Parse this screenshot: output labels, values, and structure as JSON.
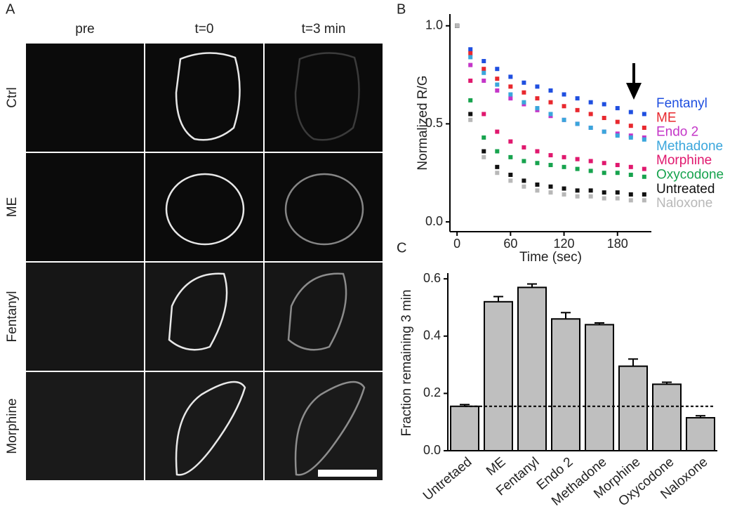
{
  "panel_a": {
    "panel_label": "A",
    "columns": [
      "pre",
      "t=0",
      "t=3 min"
    ],
    "rows": [
      "Ctrl",
      "ME",
      "Fentanyl",
      "Morphine"
    ]
  },
  "chart_data": [
    {
      "type": "line",
      "panel_label": "B",
      "x_label": "Time (sec)",
      "y_label": "Normalized R/G",
      "x": [
        0,
        15,
        30,
        45,
        60,
        75,
        90,
        105,
        120,
        135,
        150,
        165,
        180,
        195,
        210
      ],
      "xlim": [
        -8,
        218
      ],
      "xticks": [
        0,
        60,
        120,
        180
      ],
      "ylim": [
        -0.05,
        1.06
      ],
      "yticks": [
        {
          "value": 0,
          "label": "0.0"
        },
        0.5,
        {
          "value": 1,
          "label": "1.0"
        }
      ],
      "series": [
        {
          "name": "Fentanyl",
          "color": "#1f4fe0",
          "values": [
            1.0,
            0.88,
            0.82,
            0.78,
            0.74,
            0.71,
            0.69,
            0.67,
            0.65,
            0.63,
            0.61,
            0.6,
            0.58,
            0.56,
            0.55
          ]
        },
        {
          "name": "ME",
          "color": "#e8282e",
          "values": [
            1.0,
            0.86,
            0.78,
            0.73,
            0.69,
            0.66,
            0.63,
            0.61,
            0.59,
            0.57,
            0.55,
            0.53,
            0.51,
            0.49,
            0.48
          ]
        },
        {
          "name": "Endo 2",
          "color": "#c436c8",
          "values": [
            1.0,
            0.8,
            0.72,
            0.67,
            0.63,
            0.6,
            0.57,
            0.54,
            0.52,
            0.5,
            0.48,
            0.46,
            0.45,
            0.44,
            0.43
          ]
        },
        {
          "name": "Methadone",
          "color": "#3aa6dc",
          "values": [
            1.0,
            0.84,
            0.76,
            0.7,
            0.65,
            0.61,
            0.58,
            0.55,
            0.52,
            0.5,
            0.48,
            0.46,
            0.44,
            0.43,
            0.42
          ]
        },
        {
          "name": "Morphine",
          "color": "#e0186e",
          "values": [
            1.0,
            0.72,
            0.55,
            0.46,
            0.41,
            0.38,
            0.36,
            0.34,
            0.33,
            0.32,
            0.31,
            0.3,
            0.29,
            0.28,
            0.27
          ]
        },
        {
          "name": "Oxycodone",
          "color": "#17a34e",
          "values": [
            1.0,
            0.62,
            0.43,
            0.36,
            0.33,
            0.31,
            0.3,
            0.29,
            0.28,
            0.27,
            0.26,
            0.25,
            0.25,
            0.24,
            0.23
          ]
        },
        {
          "name": "Untreated",
          "color": "#111111",
          "values": [
            1.0,
            0.55,
            0.36,
            0.28,
            0.24,
            0.21,
            0.19,
            0.18,
            0.17,
            0.16,
            0.16,
            0.15,
            0.15,
            0.14,
            0.14
          ]
        },
        {
          "name": "Naloxone",
          "color": "#b8b8b8",
          "values": [
            1.0,
            0.52,
            0.33,
            0.25,
            0.21,
            0.18,
            0.16,
            0.15,
            0.14,
            0.13,
            0.13,
            0.12,
            0.12,
            0.11,
            0.11
          ]
        }
      ]
    },
    {
      "type": "bar",
      "panel_label": "C",
      "y_label": "Fraction remaining 3 min",
      "color": "#bfbfbf",
      "categories": [
        "Untretaed",
        "ME",
        "Fentanyl",
        "Endo 2",
        "Methadone",
        "Morphine",
        "Oxycodone",
        "Naloxone"
      ],
      "values": [
        0.155,
        0.52,
        0.57,
        0.46,
        0.44,
        0.295,
        0.232,
        0.115
      ],
      "errors": [
        0.006,
        0.018,
        0.012,
        0.022,
        0.006,
        0.025,
        0.007,
        0.007
      ],
      "reference_line": 0.155,
      "ylim": [
        0,
        0.62
      ],
      "yticks": [
        {
          "value": 0,
          "label": "0.0"
        },
        0.2,
        0.4,
        0.6
      ]
    }
  ]
}
